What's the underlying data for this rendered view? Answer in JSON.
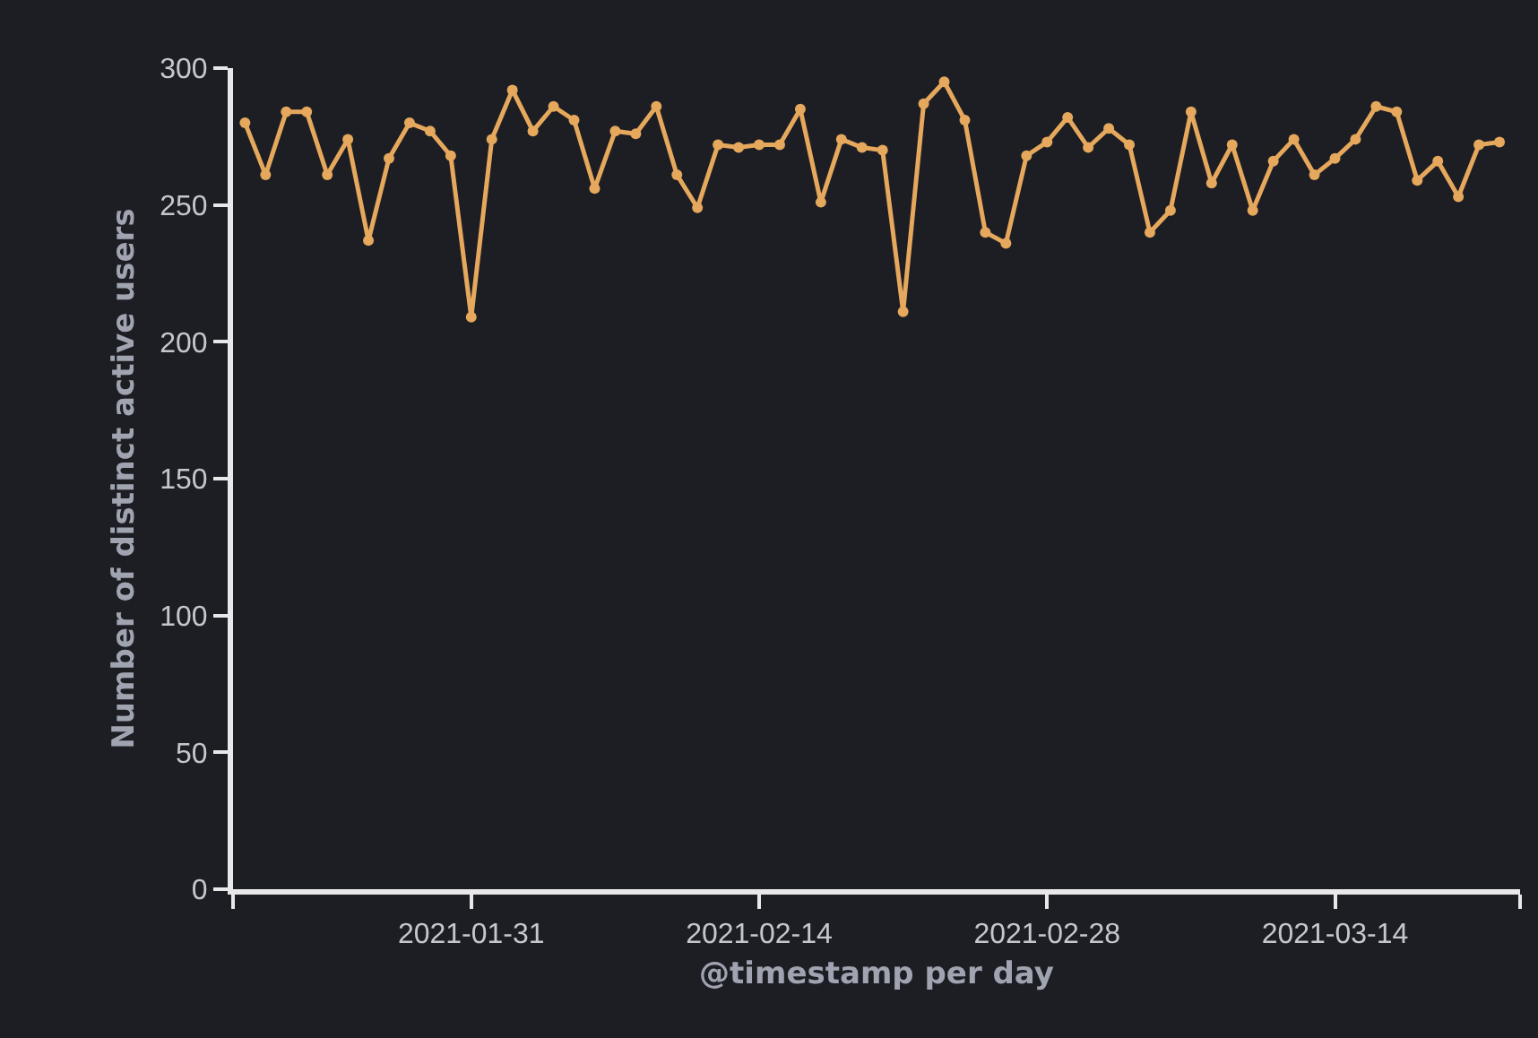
{
  "chart_data": {
    "type": "line",
    "xlabel": "@timestamp per day",
    "ylabel": "Number of distinct active users",
    "x": [
      "2021-01-20",
      "2021-01-21",
      "2021-01-22",
      "2021-01-23",
      "2021-01-24",
      "2021-01-25",
      "2021-01-26",
      "2021-01-27",
      "2021-01-28",
      "2021-01-29",
      "2021-01-30",
      "2021-01-31",
      "2021-02-01",
      "2021-02-02",
      "2021-02-03",
      "2021-02-04",
      "2021-02-05",
      "2021-02-06",
      "2021-02-07",
      "2021-02-08",
      "2021-02-09",
      "2021-02-10",
      "2021-02-11",
      "2021-02-12",
      "2021-02-13",
      "2021-02-14",
      "2021-02-15",
      "2021-02-16",
      "2021-02-17",
      "2021-02-18",
      "2021-02-19",
      "2021-02-20",
      "2021-02-21",
      "2021-02-22",
      "2021-02-23",
      "2021-02-24",
      "2021-02-25",
      "2021-02-26",
      "2021-02-27",
      "2021-02-28",
      "2021-03-01",
      "2021-03-02",
      "2021-03-03",
      "2021-03-04",
      "2021-03-05",
      "2021-03-06",
      "2021-03-07",
      "2021-03-08",
      "2021-03-09",
      "2021-03-10",
      "2021-03-11",
      "2021-03-12",
      "2021-03-13",
      "2021-03-14",
      "2021-03-15",
      "2021-03-16",
      "2021-03-17",
      "2021-03-18",
      "2021-03-19",
      "2021-03-20",
      "2021-03-21",
      "2021-03-22"
    ],
    "series": [
      {
        "color": "#e5a85c",
        "values": [
          280,
          261,
          284,
          284,
          261,
          274,
          237,
          267,
          280,
          277,
          268,
          209,
          274,
          292,
          277,
          286,
          281,
          256,
          277,
          276,
          286,
          261,
          249,
          272,
          271,
          272,
          272,
          285,
          251,
          274,
          271,
          270,
          211,
          287,
          295,
          281,
          240,
          236,
          268,
          273,
          282,
          271,
          278,
          272,
          240,
          248,
          284,
          258,
          272,
          248,
          266,
          274,
          261,
          267,
          274,
          286,
          284,
          259,
          266,
          253,
          272,
          273
        ]
      }
    ],
    "xlim": [
      "2021-01-19T10:00",
      "2021-03-23"
    ],
    "xticks": [
      {
        "value": "2021-01-19T10:00",
        "label": null
      },
      {
        "value": "2021-01-31",
        "label": "2021-01-31"
      },
      {
        "value": "2021-02-14",
        "label": "2021-02-14"
      },
      {
        "value": "2021-02-28",
        "label": "2021-02-28"
      },
      {
        "value": "2021-03-14",
        "label": "2021-03-14"
      },
      {
        "value": "2021-03-23",
        "label": null
      }
    ],
    "ylim": [
      0,
      300
    ],
    "yticks": [
      0,
      50,
      100,
      150,
      200,
      250,
      300
    ],
    "grid": false,
    "marker": "circle",
    "line_style": "solid"
  }
}
